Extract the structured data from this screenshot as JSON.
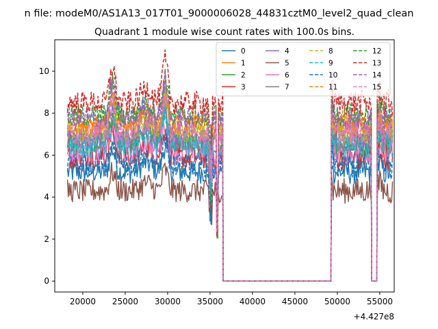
{
  "window": {
    "suptitle": "n file: modeM0/AS1A13_017T01_9000006028_44831cztM0_level2_quad_clean"
  },
  "chart_data": {
    "type": "line",
    "title": "Quadrant 1 module wise count rates with 100.0s bins.",
    "xlabel": "",
    "ylabel": "",
    "x_offset_label": "+4.427e8",
    "xlim": [
      16700,
      56700
    ],
    "ylim": [
      -0.52,
      11.5
    ],
    "xticks": [
      20000,
      25000,
      30000,
      35000,
      40000,
      45000,
      50000,
      55000
    ],
    "xtick_labels": [
      "20000",
      "25000",
      "30000",
      "35000",
      "40000",
      "45000",
      "50000",
      "55000"
    ],
    "yticks": [
      0,
      2,
      4,
      6,
      8,
      10
    ],
    "ytick_labels": [
      "0",
      "2",
      "4",
      "6",
      "8",
      "10"
    ],
    "grid": false,
    "legend_position": "upper-right",
    "legend_columns": 4,
    "segments": [
      [
        18200,
        36500
      ],
      [
        49300,
        54000
      ],
      [
        54700,
        56500
      ]
    ],
    "gap_level": 0,
    "series": [
      {
        "name": "0",
        "mean": 5.2,
        "color": "#1f77b4",
        "dash": "solid"
      },
      {
        "name": "1",
        "mean": 7.3,
        "color": "#ff7f0e",
        "dash": "solid"
      },
      {
        "name": "2",
        "mean": 6.5,
        "color": "#2ca02c",
        "dash": "solid"
      },
      {
        "name": "3",
        "mean": 5.9,
        "color": "#d62728",
        "dash": "solid"
      },
      {
        "name": "4",
        "mean": 6.8,
        "color": "#9467bd",
        "dash": "solid"
      },
      {
        "name": "5",
        "mean": 4.3,
        "color": "#8c564b",
        "dash": "solid"
      },
      {
        "name": "6",
        "mean": 6.1,
        "color": "#e377c2",
        "dash": "solid"
      },
      {
        "name": "7",
        "mean": 6.7,
        "color": "#7f7f7f",
        "dash": "solid"
      },
      {
        "name": "8",
        "mean": 7.1,
        "color": "#bcbd22",
        "dash": "dashed"
      },
      {
        "name": "9",
        "mean": 6.4,
        "color": "#17becf",
        "dash": "dashed"
      },
      {
        "name": "10",
        "mean": 5.5,
        "color": "#1f77b4",
        "dash": "dashed"
      },
      {
        "name": "11",
        "mean": 7.6,
        "color": "#ff7f0e",
        "dash": "dashed"
      },
      {
        "name": "12",
        "mean": 7.9,
        "color": "#2ca02c",
        "dash": "dashed"
      },
      {
        "name": "13",
        "mean": 8.5,
        "color": "#d62728",
        "dash": "dashed"
      },
      {
        "name": "14",
        "mean": 7.7,
        "color": "#9467bd",
        "dash": "dashed"
      },
      {
        "name": "15",
        "mean": 7.0,
        "color": "#e377c2",
        "dash": "dashed"
      }
    ]
  }
}
